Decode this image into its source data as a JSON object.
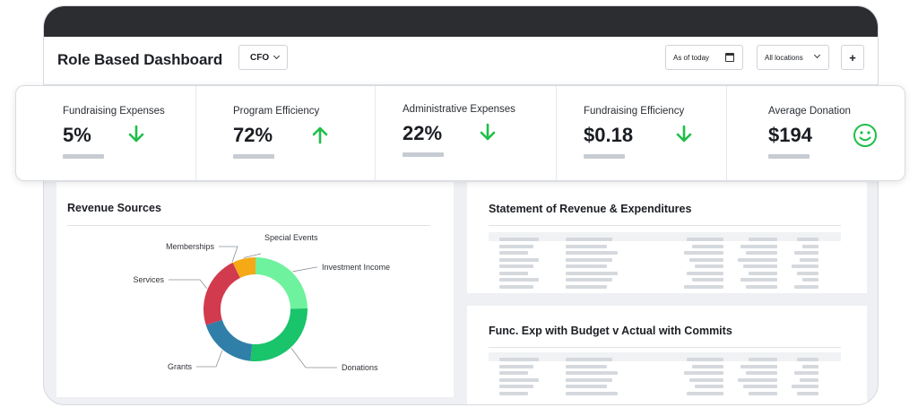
{
  "header": {
    "title": "Role Based Dashboard",
    "role_select": "CFO",
    "date_field": "As of today",
    "location_select": "All locations",
    "add_label": "+"
  },
  "kpis": [
    {
      "label": "Fundraising Expenses",
      "value": "5%",
      "trend": "down-arrow-icon"
    },
    {
      "label": "Program Efficiency",
      "value": "72%",
      "trend": "up-arrow-icon"
    },
    {
      "label": "Administrative Expenses",
      "value": "22%",
      "trend": "down-arrow-icon"
    },
    {
      "label": "Fundraising Efficiency",
      "value": "$0.18",
      "trend": "down-arrow-icon"
    },
    {
      "label": "Average Donation",
      "value": "$194",
      "trend": "smiley-icon"
    }
  ],
  "colors": {
    "trend_green": "#1fbf4a",
    "frame_dark": "#2b2d31"
  },
  "revenue": {
    "title": "Revenue Sources",
    "chart_data": {
      "type": "pie",
      "style": "donut",
      "categories": [
        "Investment Income",
        "Donations",
        "Grants",
        "Services",
        "Memberships",
        "Special Events"
      ],
      "values": [
        24,
        26,
        18,
        22,
        0,
        7
      ],
      "colors": [
        "#6ef29d",
        "#19c46a",
        "#2f7fa8",
        "#d23a4e",
        "#f4a915",
        "#f4a915"
      ]
    }
  },
  "statement": {
    "title": "Statement of Revenue & Expenditures"
  },
  "func_exp": {
    "title": "Func. Exp with Budget v Actual with Commits"
  }
}
